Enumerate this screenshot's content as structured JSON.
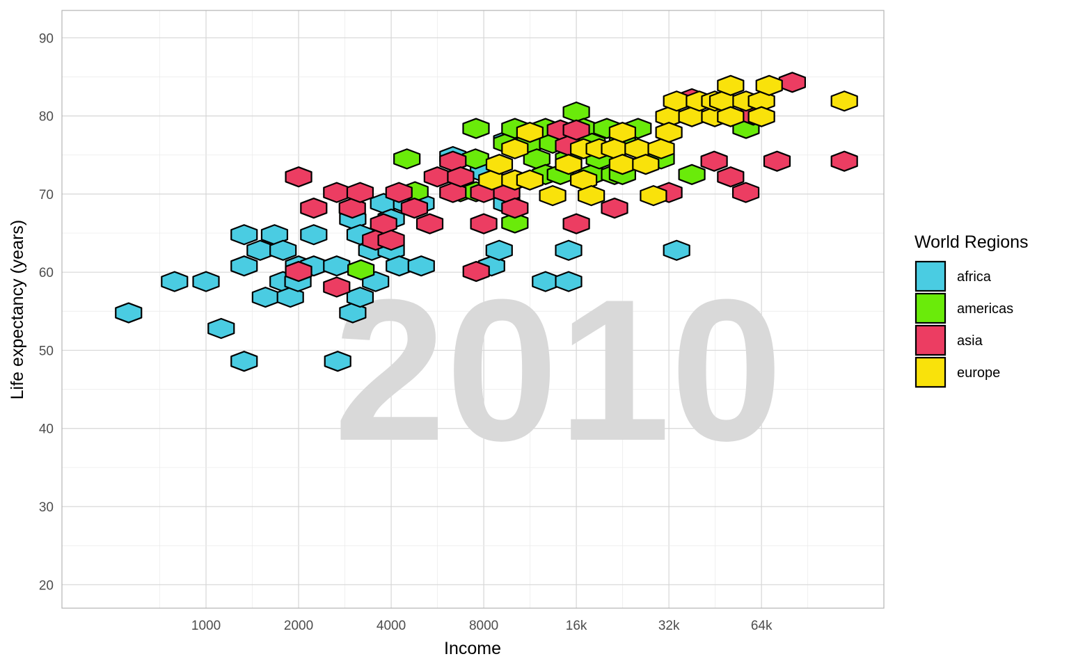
{
  "chart_data": {
    "type": "scatter",
    "subtype": "hexbin",
    "xlabel": "Income",
    "ylabel": "Life expectancy (years)",
    "x_scale": "log2",
    "xlim": [
      340,
      160000
    ],
    "ylim": [
      17,
      93.5
    ],
    "x_ticks": [
      {
        "value": 1000,
        "label": "1000"
      },
      {
        "value": 2000,
        "label": "2000"
      },
      {
        "value": 4000,
        "label": "4000"
      },
      {
        "value": 8000,
        "label": "8000"
      },
      {
        "value": 16000,
        "label": "16k"
      },
      {
        "value": 32000,
        "label": "32k"
      },
      {
        "value": 64000,
        "label": "64k"
      }
    ],
    "y_ticks": [
      20,
      30,
      40,
      50,
      60,
      70,
      80,
      90
    ],
    "grid": true,
    "watermark": "2010",
    "legend": {
      "title": "World Regions",
      "position": "right",
      "entries": [
        {
          "key": "africa",
          "label": "africa",
          "color": "#4ACCE2"
        },
        {
          "key": "americas",
          "label": "americas",
          "color": "#6AEB0A"
        },
        {
          "key": "asia",
          "label": "asia",
          "color": "#EC3D62"
        },
        {
          "key": "europe",
          "label": "europe",
          "color": "#F9E20B"
        }
      ]
    },
    "series": [
      {
        "name": "africa",
        "points": [
          [
            560,
            54.8
          ],
          [
            790,
            58.8
          ],
          [
            1000,
            58.8
          ],
          [
            1120,
            52.8
          ],
          [
            1330,
            48.6
          ],
          [
            1330,
            60.8
          ],
          [
            1330,
            64.8
          ],
          [
            1500,
            62.8
          ],
          [
            1670,
            64.8
          ],
          [
            1560,
            56.8
          ],
          [
            1780,
            62.8
          ],
          [
            1780,
            58.8
          ],
          [
            1880,
            56.8
          ],
          [
            1990,
            58.8
          ],
          [
            2000,
            60.8
          ],
          [
            2240,
            64.8
          ],
          [
            2240,
            60.8
          ],
          [
            2660,
            60.8
          ],
          [
            2680,
            48.6
          ],
          [
            3000,
            54.8
          ],
          [
            3000,
            66.8
          ],
          [
            3170,
            56.8
          ],
          [
            3170,
            64.8
          ],
          [
            3460,
            62.8
          ],
          [
            3560,
            58.8
          ],
          [
            3780,
            68.8
          ],
          [
            4000,
            62.8
          ],
          [
            4000,
            66.8
          ],
          [
            4250,
            60.8
          ],
          [
            4490,
            68.8
          ],
          [
            5000,
            68.8
          ],
          [
            5010,
            60.8
          ],
          [
            6350,
            74.8
          ],
          [
            7980,
            72.8
          ],
          [
            8480,
            60.8
          ],
          [
            8980,
            62.8
          ],
          [
            9500,
            68.8
          ],
          [
            9500,
            76.8
          ],
          [
            12700,
            58.8
          ],
          [
            15100,
            62.8
          ],
          [
            15100,
            58.8
          ],
          [
            33900,
            62.8
          ]
        ]
      },
      {
        "name": "americas",
        "points": [
          [
            3190,
            60.3
          ],
          [
            4500,
            74.5
          ],
          [
            4780,
            70.3
          ],
          [
            6720,
            70.3
          ],
          [
            7550,
            78.4
          ],
          [
            7520,
            74.5
          ],
          [
            7550,
            70.3
          ],
          [
            9500,
            76.5
          ],
          [
            10100,
            66.3
          ],
          [
            10100,
            78.4
          ],
          [
            11300,
            76.5
          ],
          [
            11900,
            74.5
          ],
          [
            12700,
            78.4
          ],
          [
            12700,
            72.5
          ],
          [
            13400,
            76.5
          ],
          [
            14200,
            72.5
          ],
          [
            15100,
            74.5
          ],
          [
            16000,
            80.5
          ],
          [
            16900,
            78.4
          ],
          [
            18000,
            76.5
          ],
          [
            18000,
            72.5
          ],
          [
            19000,
            74.5
          ],
          [
            20100,
            78.4
          ],
          [
            21300,
            72.5
          ],
          [
            22600,
            76.5
          ],
          [
            22600,
            72.5
          ],
          [
            25400,
            78.4
          ],
          [
            30200,
            74.5
          ],
          [
            38000,
            72.5
          ],
          [
            57000,
            78.4
          ]
        ]
      },
      {
        "name": "asia",
        "points": [
          [
            2000,
            72.2
          ],
          [
            2000,
            60.1
          ],
          [
            2240,
            68.2
          ],
          [
            2660,
            70.2
          ],
          [
            2660,
            58.1
          ],
          [
            2990,
            68.2
          ],
          [
            3170,
            70.2
          ],
          [
            3560,
            64.1
          ],
          [
            3780,
            66.2
          ],
          [
            4000,
            64.1
          ],
          [
            4240,
            70.2
          ],
          [
            4760,
            68.2
          ],
          [
            5340,
            66.2
          ],
          [
            5650,
            72.2
          ],
          [
            6350,
            70.2
          ],
          [
            6350,
            74.2
          ],
          [
            6730,
            72.2
          ],
          [
            8000,
            70.2
          ],
          [
            8000,
            66.2
          ],
          [
            7560,
            60.1
          ],
          [
            9500,
            70.2
          ],
          [
            10100,
            68.2
          ],
          [
            14200,
            78.2
          ],
          [
            15100,
            76.2
          ],
          [
            16000,
            78.2
          ],
          [
            16000,
            66.2
          ],
          [
            21300,
            68.2
          ],
          [
            32000,
            70.2
          ],
          [
            38000,
            82.2
          ],
          [
            44900,
            74.2
          ],
          [
            50800,
            72.2
          ],
          [
            56900,
            70.2
          ],
          [
            60200,
            80.1
          ],
          [
            71900,
            74.2
          ],
          [
            80600,
            84.3
          ],
          [
            119000,
            74.2
          ]
        ]
      },
      {
        "name": "europe",
        "points": [
          [
            8500,
            71.8
          ],
          [
            8990,
            73.8
          ],
          [
            10100,
            75.8
          ],
          [
            10100,
            71.8
          ],
          [
            11300,
            77.9
          ],
          [
            11300,
            71.8
          ],
          [
            13400,
            69.8
          ],
          [
            15100,
            73.8
          ],
          [
            16900,
            75.8
          ],
          [
            16900,
            71.8
          ],
          [
            17900,
            69.8
          ],
          [
            19000,
            75.8
          ],
          [
            21300,
            75.8
          ],
          [
            22600,
            77.9
          ],
          [
            22600,
            73.8
          ],
          [
            25400,
            75.8
          ],
          [
            26900,
            73.8
          ],
          [
            28500,
            69.8
          ],
          [
            30200,
            75.8
          ],
          [
            32000,
            79.9
          ],
          [
            32000,
            77.9
          ],
          [
            33900,
            81.9
          ],
          [
            38000,
            79.9
          ],
          [
            40200,
            81.9
          ],
          [
            45100,
            79.9
          ],
          [
            45100,
            81.9
          ],
          [
            47900,
            81.9
          ],
          [
            50800,
            83.9
          ],
          [
            50800,
            79.9
          ],
          [
            57000,
            81.9
          ],
          [
            64000,
            81.9
          ],
          [
            64000,
            79.9
          ],
          [
            67800,
            83.9
          ],
          [
            119000,
            81.9
          ]
        ]
      }
    ]
  }
}
